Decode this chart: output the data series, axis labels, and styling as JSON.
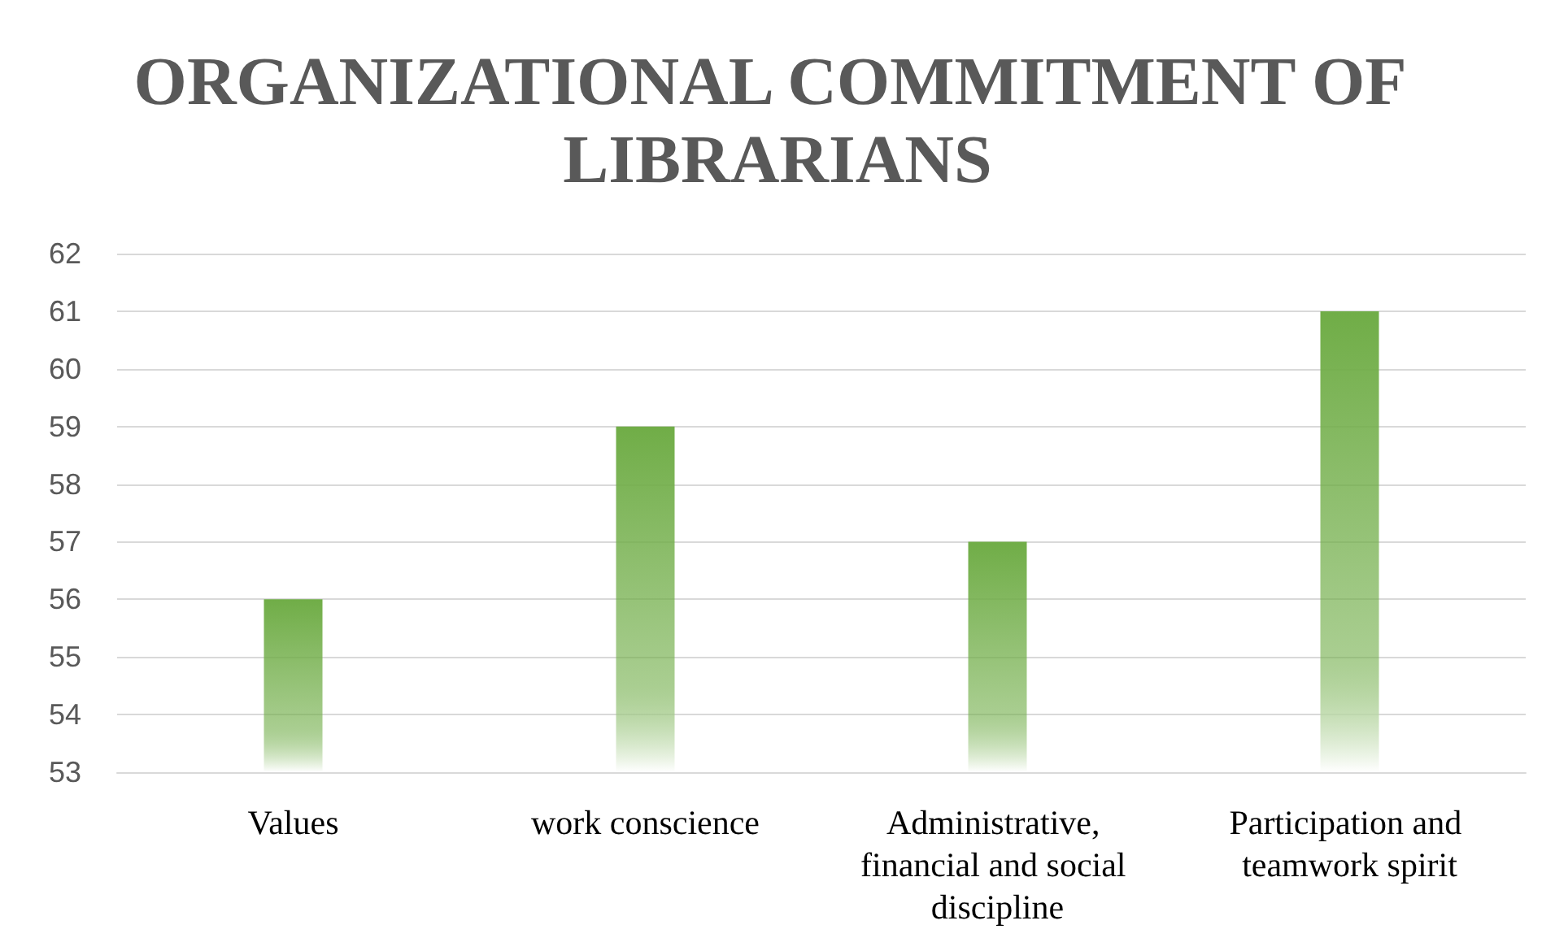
{
  "chart_data": {
    "type": "bar",
    "title": "ORGANIZATIONAL COMMITMENT OF LIBRARIANS",
    "categories": [
      "Values",
      "work conscience",
      "Administrative, financial and social discipline",
      "Participation and teamwork spirit"
    ],
    "values": [
      56,
      59,
      57,
      61
    ],
    "color": "#70ad47",
    "ylim": [
      53,
      62
    ],
    "yticks": [
      53,
      54,
      55,
      56,
      57,
      58,
      59,
      60,
      61,
      62
    ],
    "grid": "y"
  }
}
